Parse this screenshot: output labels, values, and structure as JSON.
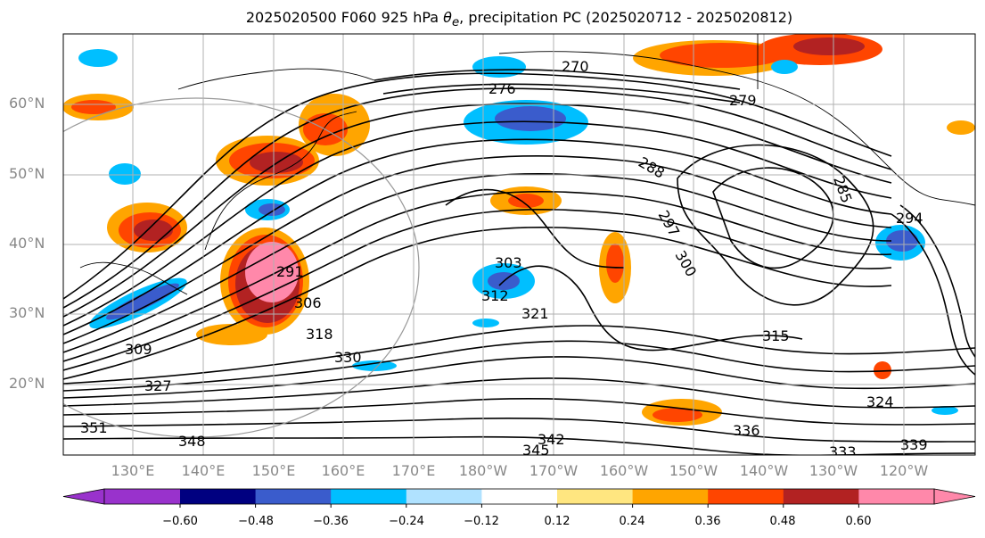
{
  "title": "2025020500 F060 925 hPa θe, precipitation PC (2025020712 - 2025020812)",
  "lat_labels": [
    "60°N",
    "50°N",
    "40°N",
    "30°N",
    "20°N"
  ],
  "lon_labels": [
    "130°E",
    "140°E",
    "150°E",
    "160°E",
    "170°E",
    "180°W",
    "170°W",
    "160°W",
    "150°W",
    "140°W",
    "130°W",
    "120°W"
  ],
  "colorbar": {
    "ticks": [
      "−0.60",
      "−0.48",
      "−0.36",
      "−0.24",
      "−0.12",
      "0.12",
      "0.24",
      "0.36",
      "0.48",
      "0.60"
    ],
    "colors": [
      "#9932cc",
      "#000080",
      "#3a5ccc",
      "#00bfff",
      "#b0e2ff",
      "#ffffff",
      "#ffe680",
      "#ffa500",
      "#ff4500",
      "#b22222",
      "#ff88aa"
    ]
  },
  "contour_labels": [
    "270",
    "276",
    "279",
    "285",
    "288",
    "291",
    "294",
    "297",
    "300",
    "303",
    "306",
    "309",
    "312",
    "315",
    "318",
    "321",
    "324",
    "327",
    "330",
    "333",
    "336",
    "339",
    "342",
    "345",
    "348",
    "351"
  ]
}
